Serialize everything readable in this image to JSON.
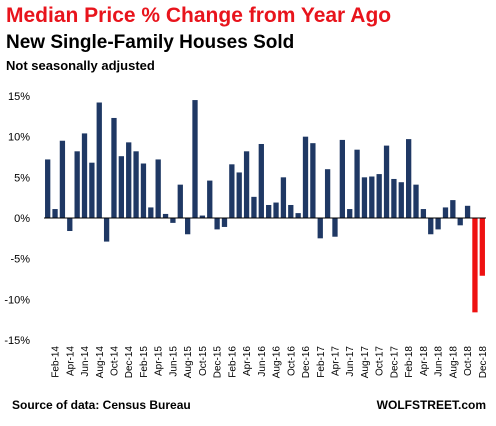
{
  "chart_data": {
    "type": "bar",
    "title": "Median Price % Change from Year Ago",
    "subtitle": "New Single-Family Houses Sold",
    "note": "Not seasonally adjusted",
    "source": "Source of data: Census Bureau",
    "brand": "WOLFSTREET.com",
    "ylim": [
      -15,
      15
    ],
    "yticks": [
      15,
      10,
      5,
      0,
      -5,
      -10,
      -15
    ],
    "ytick_labels": [
      "15%",
      "10%",
      "5%",
      "0%",
      "-5%",
      "-10%",
      "-15%"
    ],
    "grid": false,
    "legend": "none",
    "colors": {
      "positive": "#1f3864",
      "negative": "#ee1111"
    },
    "x_tick_labels": [
      "Feb-14",
      "Apr-14",
      "Jun-14",
      "Aug-14",
      "Oct-14",
      "Dec-14",
      "Feb-15",
      "Apr-15",
      "Jun-15",
      "Aug-15",
      "Oct-15",
      "Dec-15",
      "Feb-16",
      "Apr-16",
      "Jun-16",
      "Aug-16",
      "Oct-16",
      "Dec-16",
      "Feb-17",
      "Apr-17",
      "Jun-17",
      "Aug-17",
      "Oct-17",
      "Dec-17",
      "Feb-18",
      "Apr-18",
      "Jun-18",
      "Aug-18",
      "Oct-18",
      "Dec-18"
    ],
    "categories": [
      "Jan-14",
      "Feb-14",
      "Mar-14",
      "Apr-14",
      "May-14",
      "Jun-14",
      "Jul-14",
      "Aug-14",
      "Sep-14",
      "Oct-14",
      "Nov-14",
      "Dec-14",
      "Jan-15",
      "Feb-15",
      "Mar-15",
      "Apr-15",
      "May-15",
      "Jun-15",
      "Jul-15",
      "Aug-15",
      "Sep-15",
      "Oct-15",
      "Nov-15",
      "Dec-15",
      "Jan-16",
      "Feb-16",
      "Mar-16",
      "Apr-16",
      "May-16",
      "Jun-16",
      "Jul-16",
      "Aug-16",
      "Sep-16",
      "Oct-16",
      "Nov-16",
      "Dec-16",
      "Jan-17",
      "Feb-17",
      "Mar-17",
      "Apr-17",
      "May-17",
      "Jun-17",
      "Jul-17",
      "Aug-17",
      "Sep-17",
      "Oct-17",
      "Nov-17",
      "Dec-17",
      "Jan-18",
      "Feb-18",
      "Mar-18",
      "Apr-18",
      "May-18",
      "Jun-18",
      "Jul-18",
      "Aug-18",
      "Sep-18",
      "Oct-18",
      "Nov-18",
      "Dec-18"
    ],
    "values": [
      7.2,
      1.1,
      9.5,
      -1.6,
      8.2,
      10.4,
      6.8,
      14.2,
      -2.9,
      12.3,
      7.6,
      9.3,
      8.2,
      6.7,
      1.3,
      7.2,
      0.5,
      -0.6,
      4.1,
      -2.0,
      14.5,
      0.3,
      4.6,
      -1.4,
      -1.1,
      6.6,
      5.6,
      8.2,
      2.6,
      9.1,
      1.6,
      1.9,
      5.0,
      1.6,
      0.6,
      10.0,
      9.2,
      -2.5,
      6.0,
      -2.3,
      9.6,
      1.1,
      8.4,
      5.0,
      5.1,
      5.4,
      8.9,
      4.8,
      4.4,
      9.7,
      4.1,
      1.1,
      -2.0,
      -1.4,
      1.3,
      2.2,
      -0.9,
      1.5,
      -11.6,
      -7.1
    ]
  }
}
